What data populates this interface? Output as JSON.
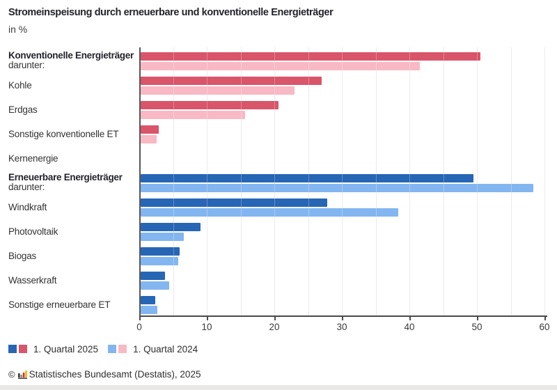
{
  "title": "Stromeinspeisung durch erneuerbare und konventionelle Energieträger",
  "subtitle": "in %",
  "chart_data": {
    "type": "bar",
    "orientation": "horizontal",
    "unit": "%",
    "title": "Stromeinspeisung durch erneuerbare und konventionelle Energieträger",
    "xlim": [
      0,
      60
    ],
    "xticks": [
      0,
      10,
      20,
      30,
      40,
      50,
      60
    ],
    "gridline_step": 5,
    "grid": true,
    "legend_position": "bottom",
    "categories": [
      {
        "label": "Konventionelle Energieträger",
        "sublabel": "darunter:",
        "emphasis": true,
        "group": "conventional"
      },
      {
        "label": "Kohle",
        "group": "conventional"
      },
      {
        "label": "Erdgas",
        "group": "conventional"
      },
      {
        "label": "Sonstige konventionelle ET",
        "group": "conventional"
      },
      {
        "label": "Kernenergie",
        "group": "conventional"
      },
      {
        "label": "Erneuerbare Energieträger",
        "sublabel": "darunter:",
        "emphasis": true,
        "group": "renewable"
      },
      {
        "label": "Windkraft",
        "group": "renewable"
      },
      {
        "label": "Photovoltaik",
        "group": "renewable"
      },
      {
        "label": "Biogas",
        "group": "renewable"
      },
      {
        "label": "Wasserkraft",
        "group": "renewable"
      },
      {
        "label": "Sonstige erneuerbare ET",
        "group": "renewable"
      }
    ],
    "series": [
      {
        "name": "1. Quartal 2025",
        "colors": {
          "conventional": "#d9556a",
          "renewable": "#2766b5"
        },
        "values": [
          50.5,
          27.0,
          20.6,
          2.9,
          0,
          49.5,
          27.8,
          9.1,
          6.0,
          3.8,
          2.4
        ]
      },
      {
        "name": "1. Quartal 2024",
        "colors": {
          "conventional": "#f8b9c4",
          "renewable": "#83b6f0"
        },
        "values": [
          41.5,
          23.0,
          15.7,
          2.6,
          0,
          58.4,
          38.3,
          6.6,
          5.8,
          4.4,
          2.7
        ]
      }
    ]
  },
  "legend": [
    {
      "label": "1. Quartal 2025",
      "swatches": [
        "#2766b5",
        "#d9556a"
      ]
    },
    {
      "label": "1. Quartal 2024",
      "swatches": [
        "#83b6f0",
        "#f8b9c4"
      ]
    }
  ],
  "footer": {
    "copyright": "©",
    "logo_icon": "destatis-mini-bar-chart",
    "source": "Statistisches Bundesamt (Destatis), 2025"
  }
}
